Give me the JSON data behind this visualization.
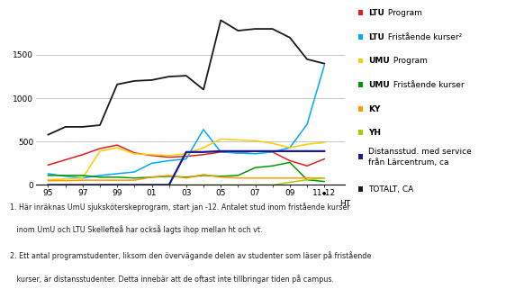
{
  "x_years": [
    1995,
    1996,
    1997,
    1998,
    1999,
    2000,
    2001,
    2002,
    2003,
    2004,
    2005,
    2006,
    2007,
    2008,
    2009,
    2010,
    2011
  ],
  "ltu_prog": [
    230,
    290,
    350,
    420,
    460,
    370,
    340,
    320,
    330,
    350,
    380,
    370,
    390,
    380,
    280,
    220,
    300
  ],
  "ltu_frist": [
    130,
    100,
    80,
    110,
    130,
    150,
    250,
    280,
    300,
    640,
    380,
    370,
    360,
    380,
    430,
    700,
    1380
  ],
  "umu_prog": [
    60,
    70,
    80,
    390,
    430,
    360,
    350,
    340,
    360,
    430,
    530,
    520,
    510,
    480,
    430,
    470,
    490
  ],
  "umu_frist": [
    110,
    110,
    110,
    90,
    90,
    80,
    90,
    100,
    90,
    110,
    100,
    110,
    200,
    220,
    260,
    60,
    40
  ],
  "ky": [
    50,
    50,
    55,
    55,
    55,
    55,
    90,
    110,
    80,
    120,
    90,
    80,
    80,
    80,
    80,
    80,
    80
  ],
  "yh": [
    0,
    0,
    0,
    0,
    0,
    0,
    0,
    0,
    0,
    0,
    0,
    0,
    0,
    0,
    30,
    60,
    80
  ],
  "distans": [
    0,
    0,
    0,
    0,
    0,
    0,
    0,
    0,
    380,
    380,
    390,
    390,
    390,
    390,
    390,
    390,
    390
  ],
  "totalt": [
    580,
    670,
    670,
    690,
    1160,
    1200,
    1210,
    1250,
    1260,
    1100,
    1900,
    1780,
    1800,
    1800,
    1700,
    1450,
    1400
  ],
  "color_ltu_prog": "#e02020",
  "color_ltu_frist": "#00aaff",
  "color_umu_prog": "#ffcc00",
  "color_umu_frist": "#009900",
  "color_ky": "#ff9900",
  "color_yh": "#aacc00",
  "color_distans": "#1a1a99",
  "color_totalt": "#1a1a1a",
  "yticks": [
    0,
    500,
    1000,
    1500
  ],
  "xlim_min": 1994.3,
  "xlim_max": 2012.2,
  "ylim_max": 2000,
  "footnote1": "1. Här inräknas UmU sjuksköterskeprogram, start jan -12. Antalet stud inom fristående kurser",
  "footnote1b": "   inom UmU och LTU Skellefteå har också lagts ihop mellan ht och vt.",
  "footnote2": "2. Ett antal programstudenter, liksom den övervägande delen av studenter som läser på fristående",
  "footnote2b": "   kurser, är distansstudenter. Detta innebär att de oftast inte tillbringar tiden på campus."
}
